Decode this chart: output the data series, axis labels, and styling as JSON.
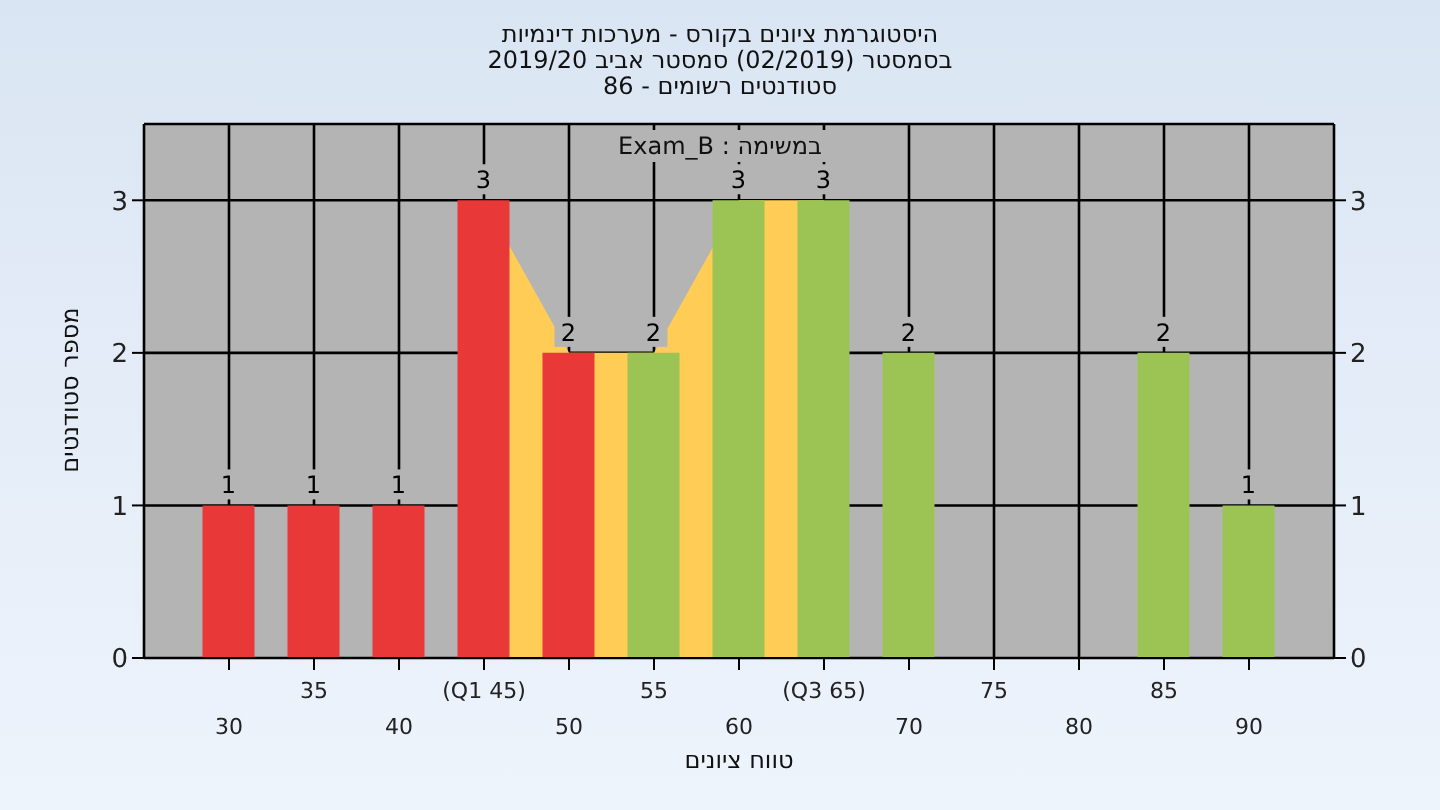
{
  "chart_data": {
    "type": "bar",
    "title": "היסטוגרמת ציונים בקורס - מערכות דינמיות",
    "subtitle": "בסמסטר  (02/2019)  סמסטר אביב 2019/20\nסטודנטים רשומים - 86",
    "xlabel": "טווח ציונים",
    "ylabel": "מספר סטודנטים",
    "annotations": [
      "במשימה : Exam_B"
    ],
    "categories": [
      "30",
      "35",
      "40",
      "(Q1 45)",
      "50",
      "55",
      "60",
      "(Q3 65)",
      "70",
      "75",
      "80",
      "85",
      "90"
    ],
    "series": [
      {
        "type": "area",
        "color": "#ffcc55",
        "values": [
          null,
          null,
          null,
          3,
          2,
          2,
          3,
          3,
          null,
          null,
          null,
          null,
          null
        ]
      },
      {
        "colors": [
          "#e83838",
          "#e83838",
          "#e83838",
          "#e83838",
          "#e83838",
          "#9cc454",
          "#9cc454",
          "#9cc454",
          "#9cc454",
          "#9cc454",
          "#9cc454",
          "#9cc454",
          "#9cc454"
        ],
        "values": [
          1,
          1,
          1,
          3,
          2,
          2,
          3,
          3,
          2,
          0,
          0,
          2,
          1
        ],
        "value_labels": [
          "1",
          "1",
          "1",
          "3",
          "2",
          "2",
          "3",
          "3",
          "2",
          null,
          null,
          "2",
          "1"
        ]
      }
    ],
    "ylim": [
      0,
      3.5
    ],
    "yticks": [
      0,
      1,
      2,
      3
    ],
    "y2lim": [
      0,
      3.5
    ],
    "y2ticks": [
      0,
      1,
      2,
      3
    ],
    "grid": true
  }
}
